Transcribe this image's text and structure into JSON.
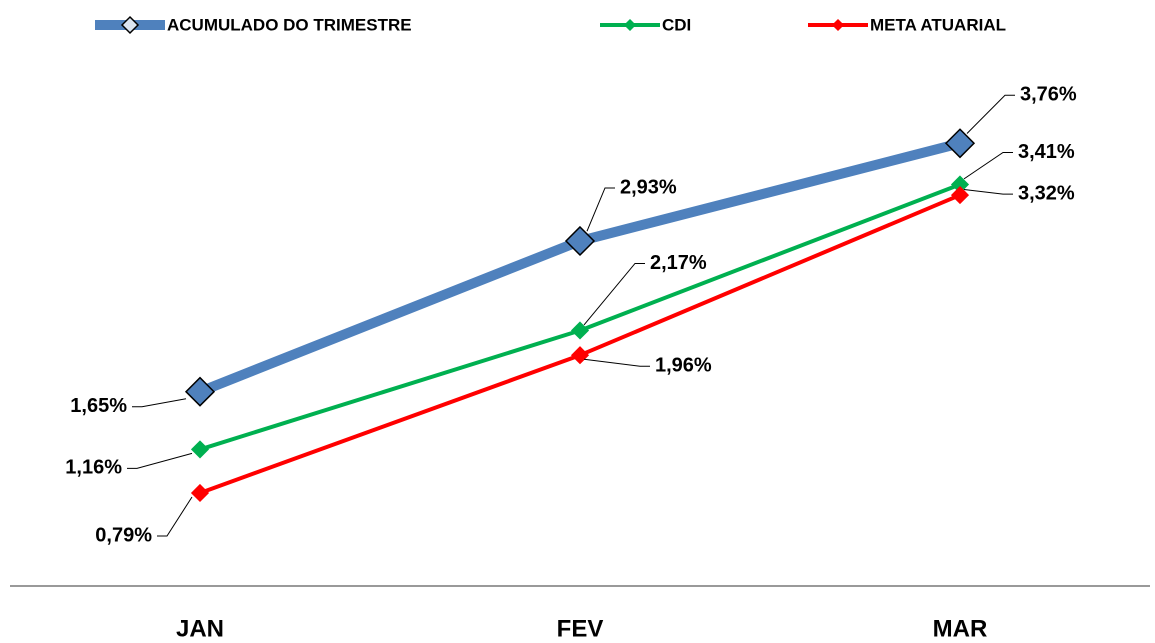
{
  "chart_data": {
    "type": "line",
    "categories": [
      "JAN",
      "FEV",
      "MAR"
    ],
    "series": [
      {
        "name": "ACUMULADO DO TRIMESTRE",
        "color": "#4f81bd",
        "values": [
          1.65,
          2.93,
          3.76
        ],
        "value_labels": [
          "1,65%",
          "2,93%",
          "3,76%"
        ]
      },
      {
        "name": "CDI",
        "color": "#00b050",
        "values": [
          1.16,
          2.17,
          3.41
        ],
        "value_labels": [
          "1,16%",
          "2,17%",
          "3,41%"
        ]
      },
      {
        "name": "META ATUARIAL",
        "color": "#ff0000",
        "values": [
          0.79,
          1.96,
          3.32
        ],
        "value_labels": [
          "0,79%",
          "1,96%",
          "3,32%"
        ]
      }
    ],
    "ylim": [
      0,
      4
    ],
    "legend": "top"
  }
}
